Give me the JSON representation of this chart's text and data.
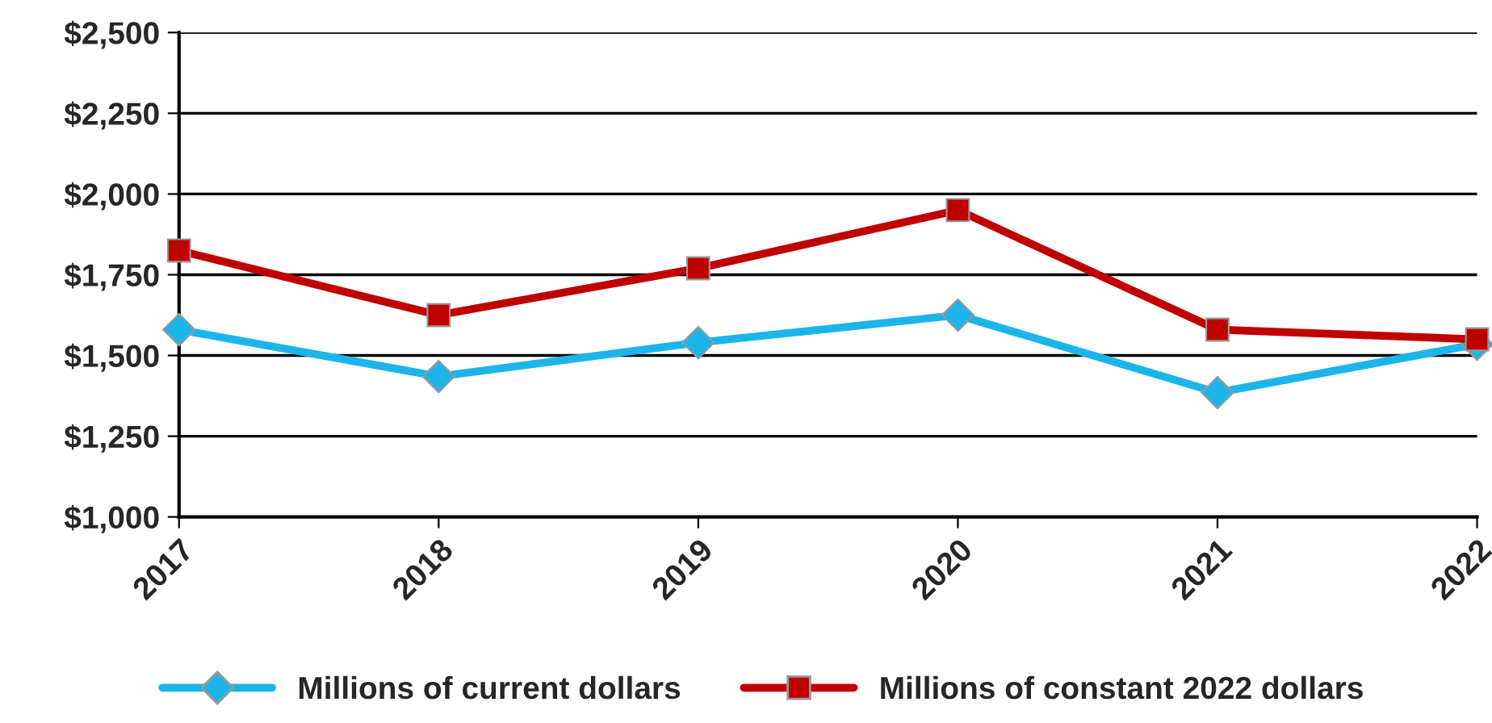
{
  "chart_data": {
    "type": "line",
    "categories": [
      "2017",
      "2018",
      "2019",
      "2020",
      "2021",
      "2022"
    ],
    "series": [
      {
        "name": "Millions of current dollars",
        "color": "#1cb5ea",
        "marker": "diamond",
        "values": [
          1580,
          1435,
          1540,
          1625,
          1385,
          1535
        ]
      },
      {
        "name": "Millions of constant 2022 dollars",
        "color": "#c00000",
        "marker": "square",
        "values": [
          1825,
          1625,
          1770,
          1950,
          1580,
          1550
        ]
      }
    ],
    "ylim": [
      1000,
      2500
    ],
    "yticks": [
      {
        "value": 1000,
        "label": "$1,000"
      },
      {
        "value": 1250,
        "label": "$1,250"
      },
      {
        "value": 1500,
        "label": "$1,500"
      },
      {
        "value": 1750,
        "label": "$1,750"
      },
      {
        "value": 2000,
        "label": "$2,000"
      },
      {
        "value": 2250,
        "label": "$2,250"
      },
      {
        "value": 2500,
        "label": "$2,500"
      }
    ],
    "grid": "y",
    "legend": "bottom",
    "line_style": "solid"
  }
}
